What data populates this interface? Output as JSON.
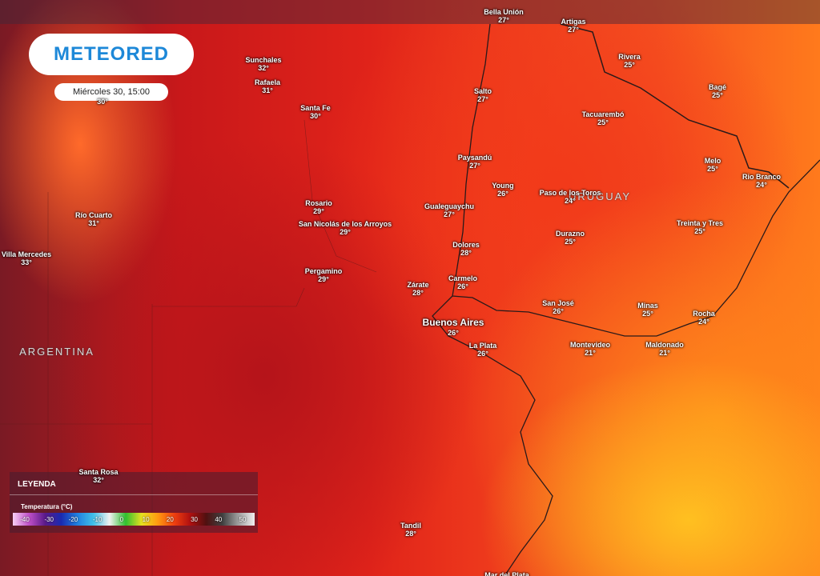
{
  "header": {
    "logo": "METEORED",
    "datetime": "Miércoles 30, 15:00"
  },
  "countries": [
    "ARGENTINA",
    "URUGUAY"
  ],
  "cities": [
    {
      "name": "Bella Unión",
      "temp": "27°"
    },
    {
      "name": "Artigas",
      "temp": "27°"
    },
    {
      "name": "Sunchales",
      "temp": "32°"
    },
    {
      "name": "Rafaela",
      "temp": "31°"
    },
    {
      "name": "Rivera",
      "temp": "25°"
    },
    {
      "name": "Bagé",
      "temp": "25°"
    },
    {
      "name": "Salto",
      "temp": "27°"
    },
    {
      "name": "Santa Fe",
      "temp": "30°"
    },
    {
      "name": "Tacuarembó",
      "temp": "25°"
    },
    {
      "name": "Paysandú",
      "temp": "27°"
    },
    {
      "name": "Melo",
      "temp": "25°"
    },
    {
      "name": "Young",
      "temp": "26°"
    },
    {
      "name": "Paso de los Toros",
      "temp": "24°"
    },
    {
      "name": "Rio Branco",
      "temp": "24°"
    },
    {
      "name": "Rosario",
      "temp": "29°"
    },
    {
      "name": "Gualeguaychu",
      "temp": "27°"
    },
    {
      "name": "Río Cuarto",
      "temp": "31°"
    },
    {
      "name": "San Nicolás de los Arroyos",
      "temp": "29°"
    },
    {
      "name": "Treinta y Tres",
      "temp": "25°"
    },
    {
      "name": "Durazno",
      "temp": "25°"
    },
    {
      "name": "Dolores",
      "temp": "28°"
    },
    {
      "name": "Villa Mercedes",
      "temp": "33°"
    },
    {
      "name": "Pergamino",
      "temp": "29°"
    },
    {
      "name": "Carmelo",
      "temp": "26°"
    },
    {
      "name": "Zárate",
      "temp": "28°"
    },
    {
      "name": "San José",
      "temp": "26°"
    },
    {
      "name": "Minas",
      "temp": "25°"
    },
    {
      "name": "Rocha",
      "temp": "24°"
    },
    {
      "name": "Buenos Aires",
      "temp": "26°"
    },
    {
      "name": "La Plata",
      "temp": "26°"
    },
    {
      "name": "Montevideo",
      "temp": "21°"
    },
    {
      "name": "Maldonado",
      "temp": "21°"
    },
    {
      "name": "Santa Rosa",
      "temp": "32°"
    },
    {
      "name": "Tandil",
      "temp": "28°"
    },
    {
      "temp": "30°"
    },
    {
      "name": "Mar del Plata"
    }
  ],
  "legend": {
    "title": "LEYENDA",
    "subtitle": "Temperatura (°C)",
    "ticks": [
      "-40",
      "-30",
      "-20",
      "-10",
      "0",
      "10",
      "20",
      "30",
      "40",
      "50"
    ]
  }
}
